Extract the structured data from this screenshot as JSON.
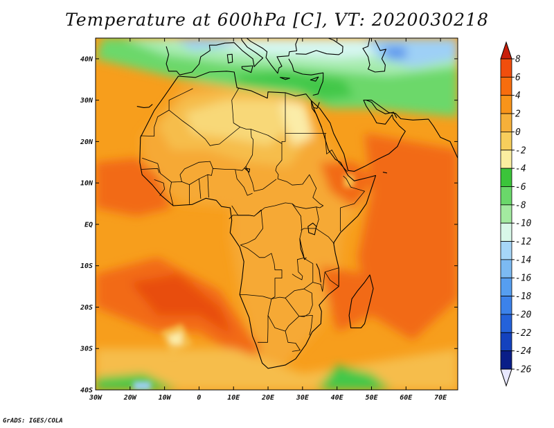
{
  "title": "Temperature at 600hPa [C], VT: 2020030218",
  "credit": "GrADS: IGES/COLA",
  "map": {
    "lon_range": [
      -30,
      75
    ],
    "lat_range": [
      -40,
      45
    ],
    "lon_ticks": [
      {
        "value": -30,
        "label": "30W"
      },
      {
        "value": -20,
        "label": "20W"
      },
      {
        "value": -10,
        "label": "10W"
      },
      {
        "value": 0,
        "label": "0"
      },
      {
        "value": 10,
        "label": "10E"
      },
      {
        "value": 20,
        "label": "20E"
      },
      {
        "value": 30,
        "label": "30E"
      },
      {
        "value": 40,
        "label": "40E"
      },
      {
        "value": 50,
        "label": "50E"
      },
      {
        "value": 60,
        "label": "60E"
      },
      {
        "value": 70,
        "label": "70E"
      }
    ],
    "lat_ticks": [
      {
        "value": 40,
        "label": "40N"
      },
      {
        "value": 30,
        "label": "30N"
      },
      {
        "value": 20,
        "label": "20N"
      },
      {
        "value": 10,
        "label": "10N"
      },
      {
        "value": 0,
        "label": "EQ"
      },
      {
        "value": -10,
        "label": "10S"
      },
      {
        "value": -20,
        "label": "20S"
      },
      {
        "value": -30,
        "label": "30S"
      },
      {
        "value": -40,
        "label": "40S"
      }
    ]
  },
  "colorbar": {
    "labels": [
      "8",
      "6",
      "4",
      "2",
      "0",
      "-2",
      "-4",
      "-6",
      "-8",
      "-10",
      "-12",
      "-14",
      "-16",
      "-18",
      "-20",
      "-22",
      "-24",
      "-26"
    ],
    "colors": [
      "#c81e0a",
      "#f04e0d",
      "#f76d0e",
      "#f8941a",
      "#f6b03a",
      "#f7ce5c",
      "#fbeea0",
      "#3bc43a",
      "#6ad86a",
      "#a3eaa0",
      "#d8f8e8",
      "#a6d6f8",
      "#7cbaf2",
      "#569ef0",
      "#3c82ea",
      "#2462da",
      "#1442be",
      "#0a1e88",
      "#e8e8ff"
    ]
  },
  "colors": {
    "ocean_base": "#f79e1c",
    "land_base": "#f6a935",
    "hot": "#f26a12",
    "very_hot": "#e84e0c",
    "warm": "#f6bd4c",
    "mild": "#f8d878",
    "cool": "#fbeca8",
    "green_dark": "#42c84a",
    "green_mid": "#6cd86a",
    "green_light": "#a8ecb0",
    "blue_light": "#d6f6f0",
    "blue_mid": "#9ed0f6",
    "blue_dark": "#5c96ec"
  }
}
